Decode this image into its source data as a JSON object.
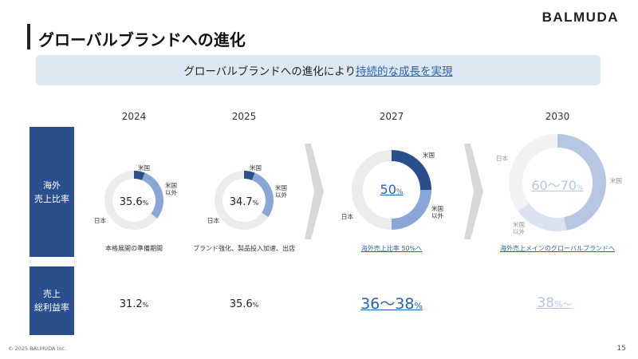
{
  "brand": "BALMUDA",
  "title": "グローバルブランドへの進化",
  "banner": {
    "text": "グローバルブランドへの進化により",
    "highlight": "持続的な成長を実現"
  },
  "years": [
    "2024",
    "2025",
    "2027",
    "2030"
  ],
  "rows": {
    "overseas_ratio": {
      "line1": "海外",
      "line2": "売上比率"
    },
    "gross_margin": {
      "line1": "売上",
      "line2": "総利益率"
    }
  },
  "donuts": [
    {
      "year": "2024",
      "value": "35.6",
      "unit": "%",
      "overseas_share": 0.356,
      "us_share": 0.06,
      "labels": {
        "us": "米国",
        "non_us_1": "米国",
        "non_us_2": "以外",
        "japan": "日本"
      }
    },
    {
      "year": "2025",
      "value": "34.7",
      "unit": "%",
      "overseas_share": 0.347,
      "us_share": 0.06,
      "labels": {
        "us": "米国",
        "non_us_1": "米国",
        "non_us_2": "以外",
        "japan": "日本"
      }
    },
    {
      "year": "2027",
      "value": "50",
      "unit": "%",
      "overseas_share": 0.5,
      "us_share": 0.25,
      "labels": {
        "us": "米国",
        "non_us_1": "米国",
        "non_us_2": "以外",
        "japan": "日本"
      }
    },
    {
      "year": "2030",
      "value": "60～70",
      "unit": "%",
      "overseas_share": 0.65,
      "us_share": 0.47,
      "labels": {
        "us": "米国",
        "non_us_1": "米国",
        "non_us_2": "以外",
        "japan": "日本"
      }
    }
  ],
  "captions": [
    "本格展開の準備期間",
    "ブランド強化、製品投入加速、出店",
    "海外売上比率 50%へ",
    "海外売上メインのグローバルブランドへ"
  ],
  "gross_margins": [
    {
      "value": "31.2",
      "unit": "%"
    },
    {
      "value": "35.6",
      "unit": "%"
    },
    {
      "value": "36～38",
      "unit": "%"
    },
    {
      "value": "38",
      "unit": "%～"
    }
  ],
  "colors": {
    "row_label_bg": "#2b4f8c",
    "us_dark": "#2b4f8c",
    "non_us_light": "#8aa6d6",
    "japan_grey": "#ececec",
    "chevron": "#d8d8d8",
    "accent_link": "#2a63ad",
    "faded_2030": "#b7c7e3"
  },
  "footer": {
    "copyright": "© 2025 BALMUDA Inc.",
    "page": "15"
  }
}
